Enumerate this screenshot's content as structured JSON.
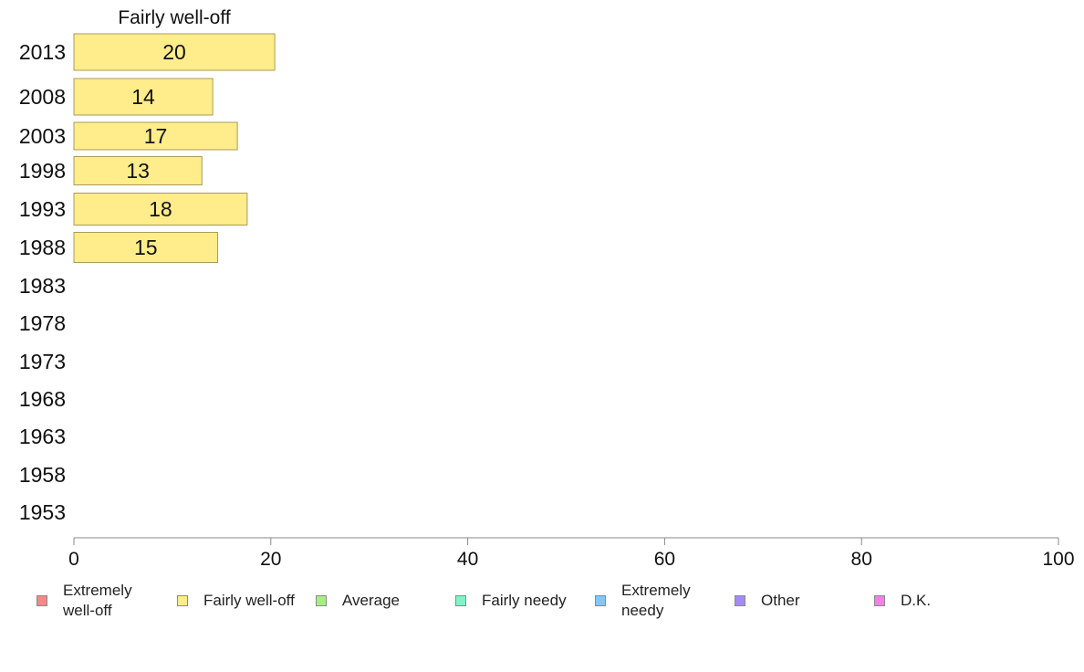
{
  "chart_data": {
    "type": "bar",
    "orientation": "horizontal",
    "panel_title": "Fairly well-off",
    "categories": [
      "2013",
      "2008",
      "2003",
      "1998",
      "1993",
      "1988",
      "1983",
      "1978",
      "1973",
      "1968",
      "1963",
      "1958",
      "1953"
    ],
    "series": [
      {
        "name": "Fairly well-off",
        "color": "#ffec8b",
        "values": [
          20.4,
          14.1,
          16.6,
          13.0,
          17.6,
          14.6,
          null,
          null,
          null,
          null,
          null,
          null,
          null
        ],
        "labels": [
          "20",
          "14",
          "17",
          "13",
          "18",
          "15",
          "",
          "",
          "",
          "",
          "",
          "",
          ""
        ]
      }
    ],
    "xlim": [
      0,
      100
    ],
    "xticks": [
      "0",
      "20",
      "40",
      "60",
      "80",
      "100"
    ],
    "grid": false,
    "legend_position": "bottom",
    "legend": [
      {
        "label": "Extremely well-off",
        "color": "#f4888a"
      },
      {
        "label": "Fairly well-off",
        "color": "#ffec8b"
      },
      {
        "label": "Average",
        "color": "#a6f07f"
      },
      {
        "label": "Fairly needy",
        "color": "#7ff5c6"
      },
      {
        "label": "Extremely needy",
        "color": "#86c6f4"
      },
      {
        "label": "Other",
        "color": "#a68af4"
      },
      {
        "label": "D.K.",
        "color": "#f47fe6"
      }
    ]
  }
}
